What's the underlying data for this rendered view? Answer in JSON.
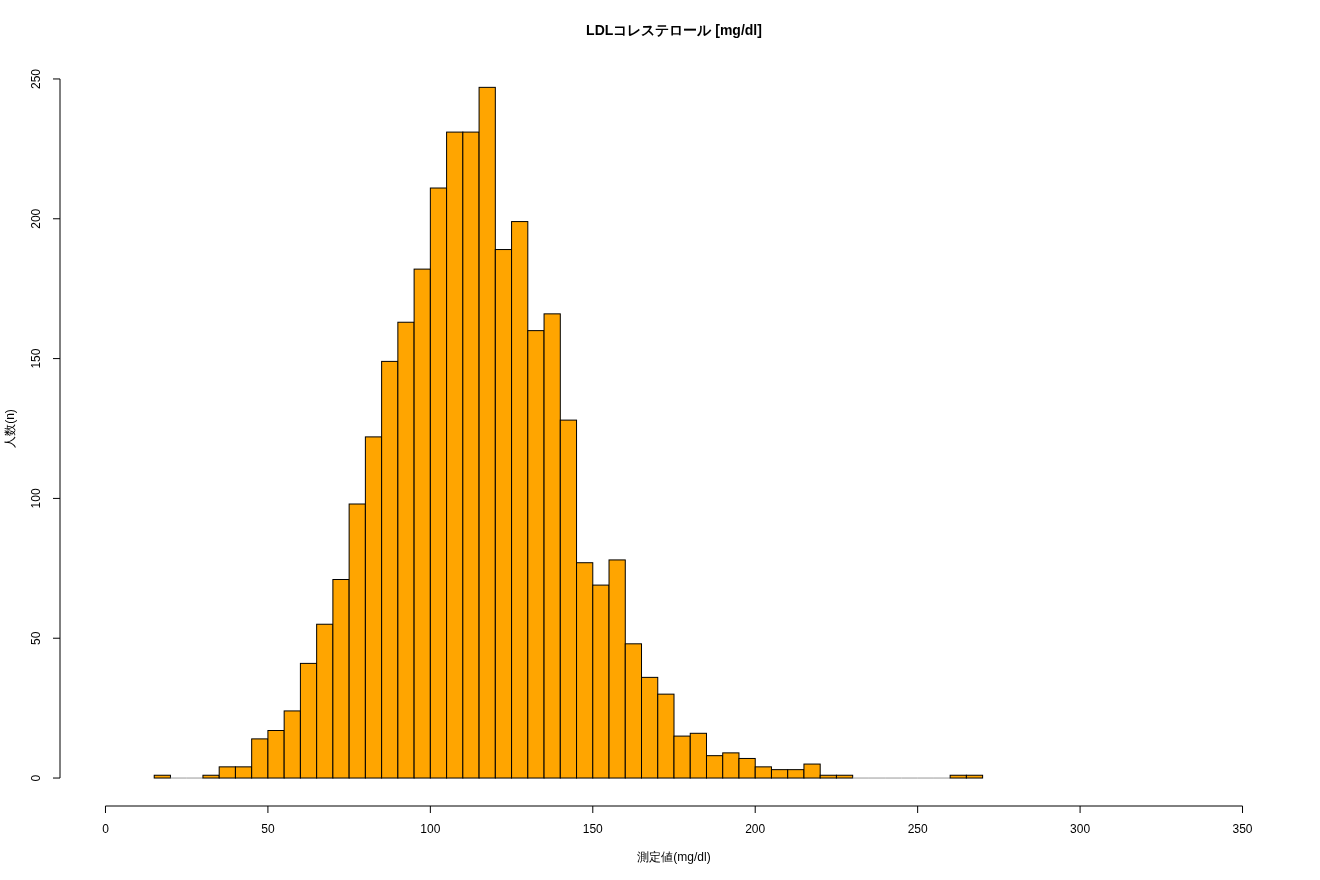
{
  "chart_data": {
    "type": "histogram",
    "title": "LDLコレステロール [mg/dl]",
    "xlabel": "測定値(mg/dl)",
    "ylabel": "人数(n)",
    "bins": [
      15,
      20,
      25,
      30,
      35,
      40,
      45,
      50,
      55,
      60,
      65,
      70,
      75,
      80,
      85,
      90,
      95,
      100,
      105,
      110,
      115,
      120,
      125,
      130,
      135,
      140,
      145,
      150,
      155,
      160,
      165,
      170,
      175,
      180,
      185,
      190,
      195,
      200,
      205,
      210,
      215,
      220,
      225,
      230,
      235,
      240,
      245,
      250,
      255,
      260,
      265,
      270
    ],
    "values": [
      1,
      0,
      0,
      1,
      4,
      4,
      14,
      17,
      24,
      41,
      55,
      71,
      98,
      122,
      149,
      163,
      182,
      211,
      231,
      231,
      247,
      189,
      199,
      160,
      166,
      128,
      77,
      69,
      78,
      48,
      36,
      30,
      15,
      16,
      8,
      9,
      7,
      4,
      3,
      3,
      5,
      1,
      1,
      0,
      0,
      0,
      0,
      0,
      0,
      1,
      1
    ],
    "color": "#ffa500",
    "xlim": [
      0,
      350
    ],
    "xticks": [
      0,
      50,
      100,
      150,
      200,
      250,
      300,
      350
    ],
    "ylim": [
      0,
      250
    ],
    "yticks": [
      0,
      50,
      100,
      150,
      200,
      250
    ],
    "grid": false
  }
}
